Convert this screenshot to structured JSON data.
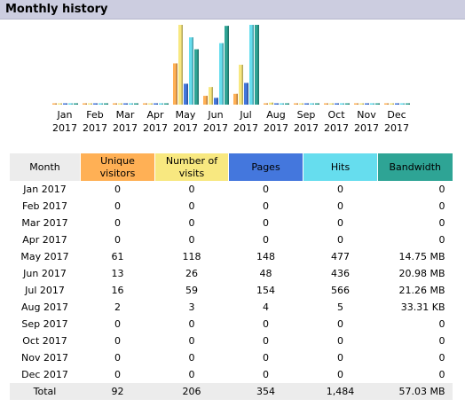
{
  "title": "Monthly history",
  "colors": {
    "visitors": "#ffb055",
    "visits": "#f8e880",
    "pages": "#4477dd",
    "hits": "#66ddee",
    "bandwidth": "#2ea495",
    "month_header": "#ececec",
    "header_bar": "#cccde0"
  },
  "table": {
    "headers": {
      "month": "Month",
      "visitors": "Unique visitors",
      "visits": "Number of visits",
      "pages": "Pages",
      "hits": "Hits",
      "bandwidth": "Bandwidth"
    },
    "rows": [
      {
        "month": "Jan 2017",
        "visitors": "0",
        "visits": "0",
        "pages": "0",
        "hits": "0",
        "bandwidth": "0"
      },
      {
        "month": "Feb 2017",
        "visitors": "0",
        "visits": "0",
        "pages": "0",
        "hits": "0",
        "bandwidth": "0"
      },
      {
        "month": "Mar 2017",
        "visitors": "0",
        "visits": "0",
        "pages": "0",
        "hits": "0",
        "bandwidth": "0"
      },
      {
        "month": "Apr 2017",
        "visitors": "0",
        "visits": "0",
        "pages": "0",
        "hits": "0",
        "bandwidth": "0"
      },
      {
        "month": "May 2017",
        "visitors": "61",
        "visits": "118",
        "pages": "148",
        "hits": "477",
        "bandwidth": "14.75 MB"
      },
      {
        "month": "Jun 2017",
        "visitors": "13",
        "visits": "26",
        "pages": "48",
        "hits": "436",
        "bandwidth": "20.98 MB"
      },
      {
        "month": "Jul 2017",
        "visitors": "16",
        "visits": "59",
        "pages": "154",
        "hits": "566",
        "bandwidth": "21.26 MB"
      },
      {
        "month": "Aug 2017",
        "visitors": "2",
        "visits": "3",
        "pages": "4",
        "hits": "5",
        "bandwidth": "33.31 KB"
      },
      {
        "month": "Sep 2017",
        "visitors": "0",
        "visits": "0",
        "pages": "0",
        "hits": "0",
        "bandwidth": "0"
      },
      {
        "month": "Oct 2017",
        "visitors": "0",
        "visits": "0",
        "pages": "0",
        "hits": "0",
        "bandwidth": "0"
      },
      {
        "month": "Nov 2017",
        "visitors": "0",
        "visits": "0",
        "pages": "0",
        "hits": "0",
        "bandwidth": "0"
      },
      {
        "month": "Dec 2017",
        "visitors": "0",
        "visits": "0",
        "pages": "0",
        "hits": "0",
        "bandwidth": "0"
      }
    ],
    "total": {
      "label": "Total",
      "visitors": "92",
      "visits": "206",
      "pages": "354",
      "hits": "1,484",
      "bandwidth": "57.03 MB"
    }
  },
  "chart_data": {
    "type": "bar",
    "categories": [
      [
        "Jan",
        "2017"
      ],
      [
        "Feb",
        "2017"
      ],
      [
        "Mar",
        "2017"
      ],
      [
        "Apr",
        "2017"
      ],
      [
        "May",
        "2017"
      ],
      [
        "Jun",
        "2017"
      ],
      [
        "Jul",
        "2017"
      ],
      [
        "Aug",
        "2017"
      ],
      [
        "Sep",
        "2017"
      ],
      [
        "Oct",
        "2017"
      ],
      [
        "Nov",
        "2017"
      ],
      [
        "Dec",
        "2017"
      ]
    ],
    "series": [
      {
        "key": "visitors",
        "values": [
          0,
          0,
          0,
          0,
          61,
          13,
          16,
          2,
          0,
          0,
          0,
          0
        ]
      },
      {
        "key": "visits",
        "values": [
          0,
          0,
          0,
          0,
          118,
          26,
          59,
          3,
          0,
          0,
          0,
          0
        ]
      },
      {
        "key": "pages",
        "values": [
          0,
          0,
          0,
          0,
          148,
          48,
          154,
          4,
          0,
          0,
          0,
          0
        ]
      },
      {
        "key": "hits",
        "values": [
          0,
          0,
          0,
          0,
          477,
          436,
          566,
          5,
          0,
          0,
          0,
          0
        ]
      },
      {
        "key": "bandwidth",
        "values_mb": [
          0,
          0,
          0,
          0,
          14.75,
          20.98,
          21.26,
          0.0325,
          0,
          0,
          0,
          0
        ]
      }
    ],
    "groups": [
      {
        "members": [
          "visitors",
          "visits"
        ],
        "max": 118
      },
      {
        "members": [
          "pages",
          "hits"
        ],
        "max": 566
      },
      {
        "members": [
          "bandwidth"
        ],
        "max": 21.26
      }
    ]
  }
}
